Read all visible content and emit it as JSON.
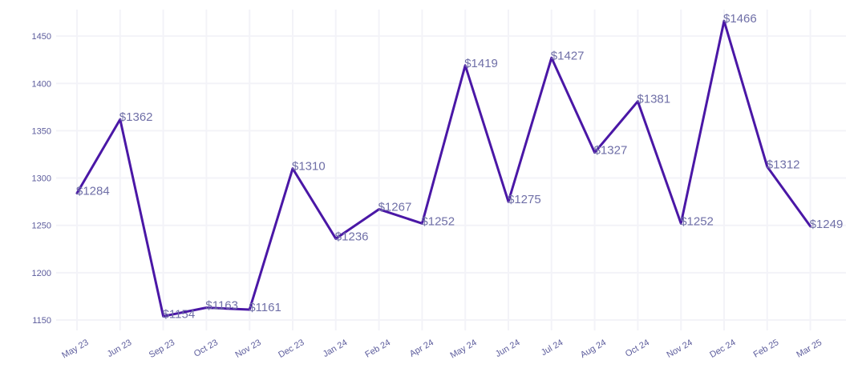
{
  "chart_data": {
    "type": "line",
    "title": "",
    "xlabel": "",
    "ylabel": "",
    "categories": [
      "May 23",
      "Jun 23",
      "Sep 23",
      "Oct 23",
      "Nov 23",
      "Dec 23",
      "Jan 24",
      "Feb 24",
      "Apr 24",
      "May 24",
      "Jun 24",
      "Jul 24",
      "Aug 24",
      "Oct 24",
      "Nov 24",
      "Dec 24",
      "Feb 25",
      "Mar 25"
    ],
    "series": [
      {
        "values": [
          1284,
          1362,
          1154,
          1163,
          1161,
          1310,
          1236,
          1267,
          1252,
          1419,
          1275,
          1427,
          1327,
          1381,
          1252,
          1466,
          1312,
          1249
        ],
        "labels": [
          "$1284",
          "$1362",
          "$1154",
          "$1163",
          "$1161",
          "$1310",
          "$1236",
          "$1267",
          "$1252",
          "$1419",
          "$1275",
          "$1427",
          "$1327",
          "$1381",
          "$1252",
          "$1466",
          "$1312",
          "$1249"
        ]
      }
    ],
    "y_ticks": [
      "1150",
      "1200",
      "1250",
      "1300",
      "1350",
      "1400",
      "1450"
    ],
    "ylim": [
      1139,
      1478
    ],
    "grid": true,
    "legend": "none",
    "colors": {
      "line": "#4a17a6",
      "grid": "#f3f3f8",
      "text": "#5c5c9c",
      "label": "#6f6fa7"
    }
  }
}
